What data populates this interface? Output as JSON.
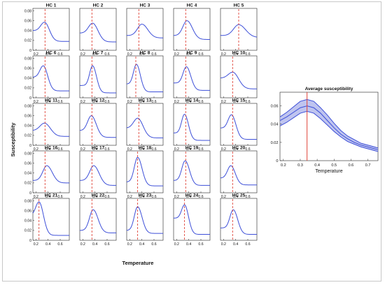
{
  "chart_data": [
    {
      "type": "grid",
      "xlabel": "Temperature",
      "ylabel": "Susceptibility",
      "x_ticks": [
        "0.2",
        "0.4",
        "0.6"
      ],
      "y_ticks": [
        "0",
        "0.02",
        "0.04",
        "0.06",
        "0.08"
      ],
      "xlim": [
        0.15,
        0.75
      ],
      "ylim": [
        0,
        0.085
      ],
      "line_color": "#3d4fd8",
      "dashed_line_color": "#e0453a",
      "panels": [
        {
          "title": "HC 1",
          "peak_x": 0.34,
          "peak_y": 0.057,
          "start_y": 0.04,
          "end_y": 0.018,
          "w": 0.1,
          "dash_x": 0.35
        },
        {
          "title": "HC 2",
          "peak_x": 0.36,
          "peak_y": 0.055,
          "start_y": 0.035,
          "end_y": 0.017,
          "w": 0.11,
          "dash_x": 0.35
        },
        {
          "title": "HC 3",
          "peak_x": 0.4,
          "peak_y": 0.053,
          "start_y": 0.03,
          "end_y": 0.025,
          "w": 0.12,
          "dash_x": 0.35
        },
        {
          "title": "HC 4",
          "peak_x": 0.37,
          "peak_y": 0.06,
          "start_y": 0.03,
          "end_y": 0.022,
          "w": 0.11,
          "dash_x": 0.35
        },
        {
          "title": "HC 5",
          "peak_x": 0.45,
          "peak_y": 0.052,
          "start_y": 0.03,
          "end_y": 0.026,
          "w": 0.14,
          "dash_x": 0.45
        },
        {
          "title": "HC 6",
          "peak_x": 0.32,
          "peak_y": 0.065,
          "start_y": 0.042,
          "end_y": 0.014,
          "w": 0.09,
          "dash_x": 0.35
        },
        {
          "title": "HC 7",
          "peak_x": 0.36,
          "peak_y": 0.065,
          "start_y": 0.025,
          "end_y": 0.01,
          "w": 0.08,
          "dash_x": 0.35
        },
        {
          "title": "HC 8",
          "peak_x": 0.31,
          "peak_y": 0.068,
          "start_y": 0.028,
          "end_y": 0.012,
          "w": 0.08,
          "dash_x": 0.3
        },
        {
          "title": "HC 9",
          "peak_x": 0.36,
          "peak_y": 0.063,
          "start_y": 0.03,
          "end_y": 0.015,
          "w": 0.09,
          "dash_x": 0.35
        },
        {
          "title": "HC 10",
          "peak_x": 0.35,
          "peak_y": 0.052,
          "start_y": 0.04,
          "end_y": 0.018,
          "w": 0.12,
          "dash_x": 0.35
        },
        {
          "title": "HC 11",
          "peak_x": 0.34,
          "peak_y": 0.045,
          "start_y": 0.03,
          "end_y": 0.018,
          "w": 0.12,
          "dash_x": 0.35
        },
        {
          "title": "HC 12",
          "peak_x": 0.34,
          "peak_y": 0.06,
          "start_y": 0.03,
          "end_y": 0.016,
          "w": 0.1,
          "dash_x": 0.35
        },
        {
          "title": "HC 13",
          "peak_x": 0.33,
          "peak_y": 0.055,
          "start_y": 0.035,
          "end_y": 0.015,
          "w": 0.11,
          "dash_x": 0.35
        },
        {
          "title": "HC 14",
          "peak_x": 0.33,
          "peak_y": 0.063,
          "start_y": 0.025,
          "end_y": 0.01,
          "w": 0.08,
          "dash_x": 0.35
        },
        {
          "title": "HC 15",
          "peak_x": 0.33,
          "peak_y": 0.062,
          "start_y": 0.035,
          "end_y": 0.012,
          "w": 0.09,
          "dash_x": 0.35
        },
        {
          "title": "HC 16",
          "peak_x": 0.38,
          "peak_y": 0.055,
          "start_y": 0.025,
          "end_y": 0.02,
          "w": 0.11,
          "dash_x": 0.35
        },
        {
          "title": "HC 17",
          "peak_x": 0.38,
          "peak_y": 0.055,
          "start_y": 0.025,
          "end_y": 0.015,
          "w": 0.11,
          "dash_x": 0.35
        },
        {
          "title": "HC 18",
          "peak_x": 0.33,
          "peak_y": 0.072,
          "start_y": 0.022,
          "end_y": 0.014,
          "w": 0.09,
          "dash_x": 0.33
        },
        {
          "title": "HC 19",
          "peak_x": 0.34,
          "peak_y": 0.065,
          "start_y": 0.025,
          "end_y": 0.015,
          "w": 0.09,
          "dash_x": 0.35
        },
        {
          "title": "HC 20",
          "peak_x": 0.32,
          "peak_y": 0.055,
          "start_y": 0.03,
          "end_y": 0.016,
          "w": 0.09,
          "dash_x": 0.35
        },
        {
          "title": "HC 21",
          "peak_x": 0.25,
          "peak_y": 0.078,
          "start_y": 0.05,
          "end_y": 0.01,
          "w": 0.09,
          "dash_x": 0.25
        },
        {
          "title": "HC 22",
          "peak_x": 0.37,
          "peak_y": 0.062,
          "start_y": 0.02,
          "end_y": 0.015,
          "w": 0.1,
          "dash_x": 0.35
        },
        {
          "title": "HC 23",
          "peak_x": 0.33,
          "peak_y": 0.068,
          "start_y": 0.02,
          "end_y": 0.014,
          "w": 0.09,
          "dash_x": 0.33
        },
        {
          "title": "HC 24",
          "peak_x": 0.33,
          "peak_y": 0.072,
          "start_y": 0.045,
          "end_y": 0.012,
          "w": 0.08,
          "dash_x": 0.33
        },
        {
          "title": "HC 25",
          "peak_x": 0.36,
          "peak_y": 0.062,
          "start_y": 0.025,
          "end_y": 0.012,
          "w": 0.09,
          "dash_x": 0.35
        }
      ]
    },
    {
      "type": "line",
      "title": "Average susceptibility",
      "xlabel": "Temperature",
      "x_ticks": [
        "0.2",
        "0.3",
        "0.4",
        "0.5",
        "0.6",
        "0.7"
      ],
      "y_ticks": [
        "0",
        "0.02",
        "0.04",
        "0.06"
      ],
      "xlim": [
        0.18,
        0.76
      ],
      "ylim": [
        0,
        0.075
      ],
      "vline_x": 0.34,
      "vline_color": "#e0453a",
      "line_color": "#3d4fd8",
      "band_color": "#a9b0ea",
      "x": [
        0.18,
        0.22,
        0.26,
        0.3,
        0.34,
        0.38,
        0.42,
        0.46,
        0.5,
        0.54,
        0.58,
        0.62,
        0.66,
        0.7,
        0.74,
        0.76
      ],
      "mean": [
        0.044,
        0.048,
        0.053,
        0.058,
        0.06,
        0.058,
        0.052,
        0.044,
        0.036,
        0.029,
        0.024,
        0.02,
        0.017,
        0.015,
        0.013,
        0.012
      ],
      "upper": [
        0.048,
        0.053,
        0.059,
        0.065,
        0.067,
        0.065,
        0.058,
        0.05,
        0.041,
        0.033,
        0.027,
        0.023,
        0.019,
        0.017,
        0.015,
        0.014
      ],
      "lower": [
        0.038,
        0.042,
        0.047,
        0.052,
        0.054,
        0.052,
        0.046,
        0.039,
        0.032,
        0.026,
        0.021,
        0.018,
        0.015,
        0.013,
        0.011,
        0.01
      ]
    }
  ]
}
